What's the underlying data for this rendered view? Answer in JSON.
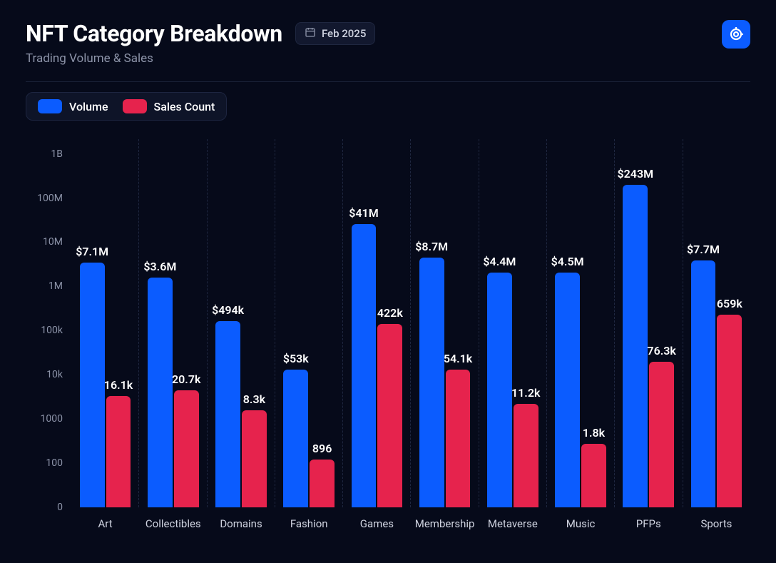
{
  "header": {
    "title": "NFT Category Breakdown",
    "subtitle": "Trading Volume & Sales",
    "date": "Feb 2025"
  },
  "legend": [
    {
      "label": "Volume",
      "color": "#0b5cff"
    },
    {
      "label": "Sales Count",
      "color": "#e6234d"
    }
  ],
  "chart": {
    "type": "grouped-bar",
    "scale": "log",
    "background_color": "#060a1a",
    "grid_color": "#1f2740",
    "axis_label_color": "#8c93a8",
    "bar_label_color": "#ffffff",
    "bar_border_radius": 6,
    "bar_label_fontsize": 16,
    "axis_fontsize": 14,
    "y_ticks": [
      {
        "label": "1B",
        "value": 1000000000
      },
      {
        "label": "100M",
        "value": 100000000
      },
      {
        "label": "10M",
        "value": 10000000
      },
      {
        "label": "1M",
        "value": 1000000
      },
      {
        "label": "100k",
        "value": 100000
      },
      {
        "label": "10k",
        "value": 10000
      },
      {
        "label": "1000",
        "value": 1000
      },
      {
        "label": "100",
        "value": 100
      },
      {
        "label": "0",
        "value": 0
      }
    ],
    "series": [
      {
        "key": "volume",
        "label": "Volume",
        "color": "#0b5cff"
      },
      {
        "key": "sales",
        "label": "Sales Count",
        "color": "#e6234d"
      }
    ],
    "categories": [
      {
        "name": "Art",
        "volume": 7100000,
        "volume_label": "$7.1M",
        "sales": 16100,
        "sales_label": "16.1k"
      },
      {
        "name": "Collectibles",
        "volume": 3600000,
        "volume_label": "$3.6M",
        "sales": 20700,
        "sales_label": "20.7k"
      },
      {
        "name": "Domains",
        "volume": 494000,
        "volume_label": "$494k",
        "sales": 8300,
        "sales_label": "8.3k"
      },
      {
        "name": "Fashion",
        "volume": 53000,
        "volume_label": "$53k",
        "sales": 896,
        "sales_label": "896"
      },
      {
        "name": "Games",
        "volume": 41000000,
        "volume_label": "$41M",
        "sales": 422000,
        "sales_label": "422k"
      },
      {
        "name": "Membership",
        "volume": 8700000,
        "volume_label": "$8.7M",
        "sales": 54100,
        "sales_label": "54.1k"
      },
      {
        "name": "Metaverse",
        "volume": 4400000,
        "volume_label": "$4.4M",
        "sales": 11200,
        "sales_label": "11.2k"
      },
      {
        "name": "Music",
        "volume": 4500000,
        "volume_label": "$4.5M",
        "sales": 1800,
        "sales_label": "1.8k"
      },
      {
        "name": "PFPs",
        "volume": 243000000,
        "volume_label": "$243M",
        "sales": 76300,
        "sales_label": "76.3k"
      },
      {
        "name": "Sports",
        "volume": 7700000,
        "volume_label": "$7.7M",
        "sales": 659000,
        "sales_label": "659k"
      }
    ]
  }
}
